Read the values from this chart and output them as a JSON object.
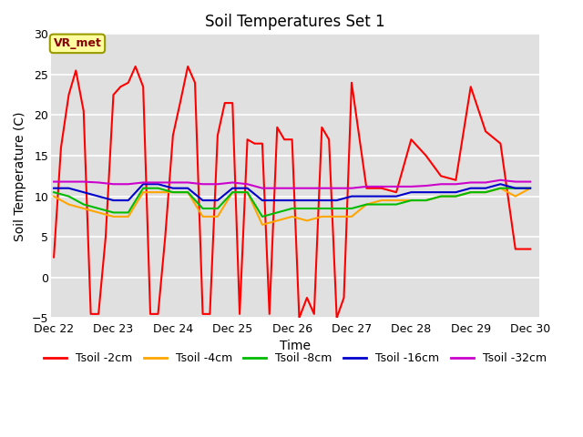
{
  "title": "Soil Temperatures Set 1",
  "xlabel": "Time",
  "ylabel": "Soil Temperature (C)",
  "ylim": [
    -5,
    30
  ],
  "yticks": [
    -5,
    0,
    5,
    10,
    15,
    20,
    25,
    30
  ],
  "bg_color": "#e0e0e0",
  "fig_color": "#ffffff",
  "annotation_text": "VR_met",
  "annotation_bg": "#ffffa0",
  "annotation_border": "#999900",
  "annotation_text_color": "#880000",
  "series": {
    "Tsoil -2cm": {
      "color": "#ff0000",
      "x": [
        0.0,
        0.12,
        0.25,
        0.37,
        0.5,
        0.62,
        0.75,
        0.87,
        1.0,
        1.12,
        1.25,
        1.37,
        1.5,
        1.62,
        1.75,
        1.87,
        2.0,
        2.12,
        2.25,
        2.37,
        2.5,
        2.62,
        2.75,
        2.87,
        3.0,
        3.12,
        3.25,
        3.37,
        3.5,
        3.62,
        3.75,
        3.87,
        4.0,
        4.12,
        4.25,
        4.37,
        4.5,
        4.62,
        4.75,
        4.87,
        5.0,
        5.25,
        5.5,
        5.75,
        6.0,
        6.25,
        6.5,
        6.75,
        7.0,
        7.25,
        7.5,
        7.75,
        8.0
      ],
      "y": [
        2.5,
        16.0,
        22.5,
        25.5,
        20.5,
        -4.5,
        -4.5,
        5.0,
        22.5,
        23.5,
        24.0,
        26.0,
        23.5,
        -4.5,
        -4.5,
        5.0,
        17.5,
        21.5,
        26.0,
        24.0,
        -4.5,
        -4.5,
        17.5,
        21.5,
        21.5,
        -4.5,
        17.0,
        16.5,
        16.5,
        -4.5,
        18.5,
        17.0,
        17.0,
        -5.0,
        -2.5,
        -4.5,
        18.5,
        17.0,
        -5.0,
        -2.5,
        24.0,
        11.0,
        11.0,
        10.5,
        17.0,
        15.0,
        12.5,
        12.0,
        23.5,
        18.0,
        16.5,
        3.5,
        3.5
      ]
    },
    "Tsoil -4cm": {
      "color": "#ffa500",
      "x": [
        0.0,
        0.25,
        0.5,
        0.75,
        1.0,
        1.25,
        1.5,
        1.75,
        2.0,
        2.25,
        2.5,
        2.75,
        3.0,
        3.25,
        3.5,
        3.75,
        4.0,
        4.25,
        4.5,
        4.75,
        5.0,
        5.25,
        5.5,
        5.75,
        6.0,
        6.25,
        6.5,
        6.75,
        7.0,
        7.25,
        7.5,
        7.75,
        8.0
      ],
      "y": [
        10.0,
        9.0,
        8.5,
        8.0,
        7.5,
        7.5,
        10.5,
        10.5,
        10.5,
        10.5,
        7.5,
        7.5,
        10.5,
        10.5,
        6.5,
        7.0,
        7.5,
        7.0,
        7.5,
        7.5,
        7.5,
        9.0,
        9.5,
        9.5,
        9.5,
        9.5,
        10.0,
        10.0,
        10.5,
        10.5,
        11.0,
        10.0,
        11.0
      ]
    },
    "Tsoil -8cm": {
      "color": "#00bb00",
      "x": [
        0.0,
        0.25,
        0.5,
        0.75,
        1.0,
        1.25,
        1.5,
        1.75,
        2.0,
        2.25,
        2.5,
        2.75,
        3.0,
        3.25,
        3.5,
        3.75,
        4.0,
        4.25,
        4.5,
        4.75,
        5.0,
        5.25,
        5.5,
        5.75,
        6.0,
        6.25,
        6.5,
        6.75,
        7.0,
        7.25,
        7.5,
        7.75,
        8.0
      ],
      "y": [
        10.5,
        10.0,
        9.0,
        8.5,
        8.0,
        8.0,
        11.0,
        11.0,
        10.5,
        10.5,
        8.5,
        8.5,
        10.5,
        10.5,
        7.5,
        8.0,
        8.5,
        8.5,
        8.5,
        8.5,
        8.5,
        9.0,
        9.0,
        9.0,
        9.5,
        9.5,
        10.0,
        10.0,
        10.5,
        10.5,
        11.0,
        11.0,
        11.0
      ]
    },
    "Tsoil -16cm": {
      "color": "#0000cc",
      "x": [
        0.0,
        0.25,
        0.5,
        0.75,
        1.0,
        1.25,
        1.5,
        1.75,
        2.0,
        2.25,
        2.5,
        2.75,
        3.0,
        3.25,
        3.5,
        3.75,
        4.0,
        4.25,
        4.5,
        4.75,
        5.0,
        5.25,
        5.5,
        5.75,
        6.0,
        6.25,
        6.5,
        6.75,
        7.0,
        7.25,
        7.5,
        7.75,
        8.0
      ],
      "y": [
        11.0,
        11.0,
        10.5,
        10.0,
        9.5,
        9.5,
        11.5,
        11.5,
        11.0,
        11.0,
        9.5,
        9.5,
        11.0,
        11.0,
        9.5,
        9.5,
        9.5,
        9.5,
        9.5,
        9.5,
        10.0,
        10.0,
        10.0,
        10.0,
        10.5,
        10.5,
        10.5,
        10.5,
        11.0,
        11.0,
        11.5,
        11.0,
        11.0
      ]
    },
    "Tsoil -32cm": {
      "color": "#cc00cc",
      "x": [
        0.0,
        0.25,
        0.5,
        0.75,
        1.0,
        1.25,
        1.5,
        1.75,
        2.0,
        2.25,
        2.5,
        2.75,
        3.0,
        3.25,
        3.5,
        3.75,
        4.0,
        4.25,
        4.5,
        4.75,
        5.0,
        5.25,
        5.5,
        5.75,
        6.0,
        6.25,
        6.5,
        6.75,
        7.0,
        7.25,
        7.5,
        7.75,
        8.0
      ],
      "y": [
        11.8,
        11.8,
        11.8,
        11.7,
        11.5,
        11.5,
        11.7,
        11.7,
        11.7,
        11.7,
        11.5,
        11.5,
        11.7,
        11.5,
        11.0,
        11.0,
        11.0,
        11.0,
        11.0,
        11.0,
        11.0,
        11.2,
        11.2,
        11.2,
        11.2,
        11.3,
        11.5,
        11.5,
        11.7,
        11.7,
        12.0,
        11.8,
        11.8
      ]
    }
  },
  "xtick_positions": [
    0,
    1,
    2,
    3,
    4,
    5,
    6,
    7,
    8
  ],
  "xtick_labels": [
    "Dec 22",
    "Dec 23",
    "Dec 24",
    "Dec 25",
    "Dec 26",
    "Dec 27",
    "Dec 28",
    "Dec 29",
    "Dec 30"
  ],
  "xlim": [
    -0.05,
    8.15
  ],
  "legend_order": [
    "Tsoil -2cm",
    "Tsoil -4cm",
    "Tsoil -8cm",
    "Tsoil -16cm",
    "Tsoil -32cm"
  ]
}
